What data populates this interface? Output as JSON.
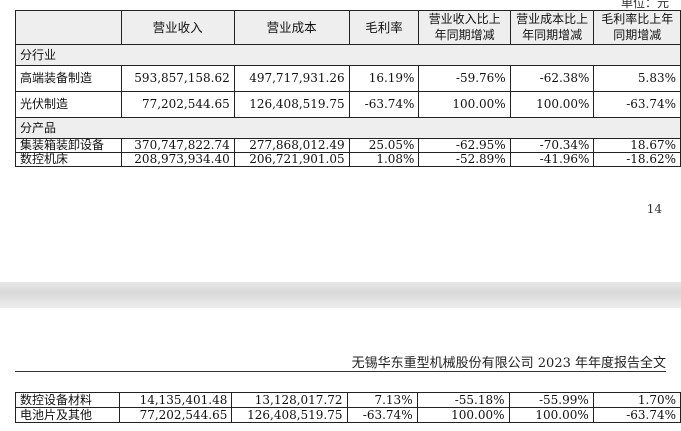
{
  "table_header": {
    "col0": "",
    "col1": "营业收入",
    "col2": "营业成本",
    "col3": "毛利率",
    "col4": "营业收入比上年同期增减",
    "col5": "营业成本比上年同期增减",
    "col6": "毛利率比上年同期增减"
  },
  "sections": [
    {
      "title": "分行业",
      "rows": [
        {
          "name": "高端装备制造",
          "revenue": "593,857,158.62",
          "cost": "497,717,931.26",
          "margin": "16.19%",
          "rev_change": "-59.76%",
          "cost_change": "-62.38%",
          "margin_change": "5.83%"
        },
        {
          "name": "光伏制造",
          "revenue": "77,202,544.65",
          "cost": "126,408,519.75",
          "margin": "-63.74%",
          "rev_change": "100.00%",
          "cost_change": "100.00%",
          "margin_change": "-63.74%"
        }
      ]
    },
    {
      "title": "分产品",
      "rows": [
        {
          "name": "集装箱装卸设备",
          "revenue": "370,747,822.74",
          "cost": "277,868,012.49",
          "margin": "25.05%",
          "rev_change": "-62.95%",
          "cost_change": "-70.34%",
          "margin_change": "18.67%"
        },
        {
          "name": "数控机床",
          "revenue": "208,973,934.40",
          "cost": "206,721,901.05",
          "margin": "1.08%",
          "rev_change": "-52.89%",
          "cost_change": "-41.96%",
          "margin_change": "-18.62%"
        }
      ]
    }
  ],
  "page_number": "14",
  "doc_header": "无锡华东重型机械股份有限公司 2023 年年度报告全文",
  "continued_rows": [
    {
      "name": "数控设备材料",
      "revenue": "14,135,401.48",
      "cost": "13,128,017.72",
      "margin": "7.13%",
      "rev_change": "-55.18%",
      "cost_change": "-55.99%",
      "margin_change": "1.70%"
    },
    {
      "name": "电池片及其他",
      "revenue": "77,202,544.65",
      "cost": "126,408,519.75",
      "margin": "-63.74%",
      "rev_change": "100.00%",
      "cost_change": "100.00%",
      "margin_change": "-63.74%"
    }
  ]
}
